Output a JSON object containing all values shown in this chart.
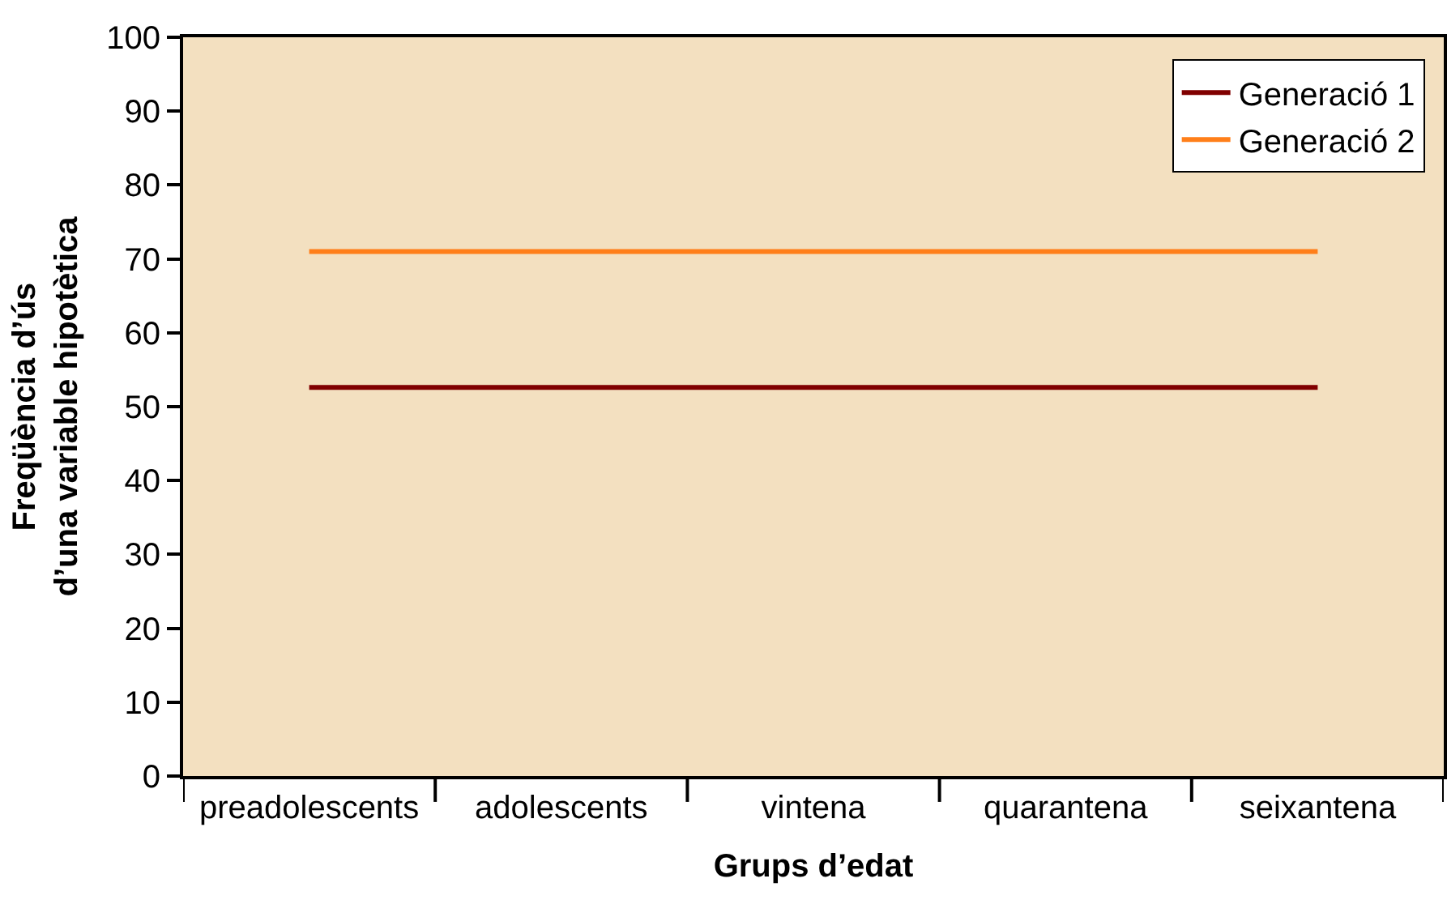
{
  "chart_data": {
    "type": "line",
    "xlabel": "Grups d’edat",
    "ylabel": "Freqüència d’ús\nd’una variable hipotètica",
    "categories": [
      "preadolescents",
      "adolescents",
      "vintena",
      "quarantena",
      "seixantena"
    ],
    "series": [
      {
        "name": "Generació 1",
        "color": "#800000",
        "values": [
          52.6,
          52.6,
          52.6,
          52.6,
          52.6
        ]
      },
      {
        "name": "Generació 2",
        "color": "#ff7f1a",
        "values": [
          71,
          71,
          71,
          71,
          71
        ]
      }
    ],
    "ylim": [
      0,
      100
    ],
    "yticks": [
      0,
      10,
      20,
      30,
      40,
      50,
      60,
      70,
      80,
      90,
      100
    ],
    "grid": false,
    "legend": "top right",
    "marker": "none",
    "line_style": "solid"
  }
}
